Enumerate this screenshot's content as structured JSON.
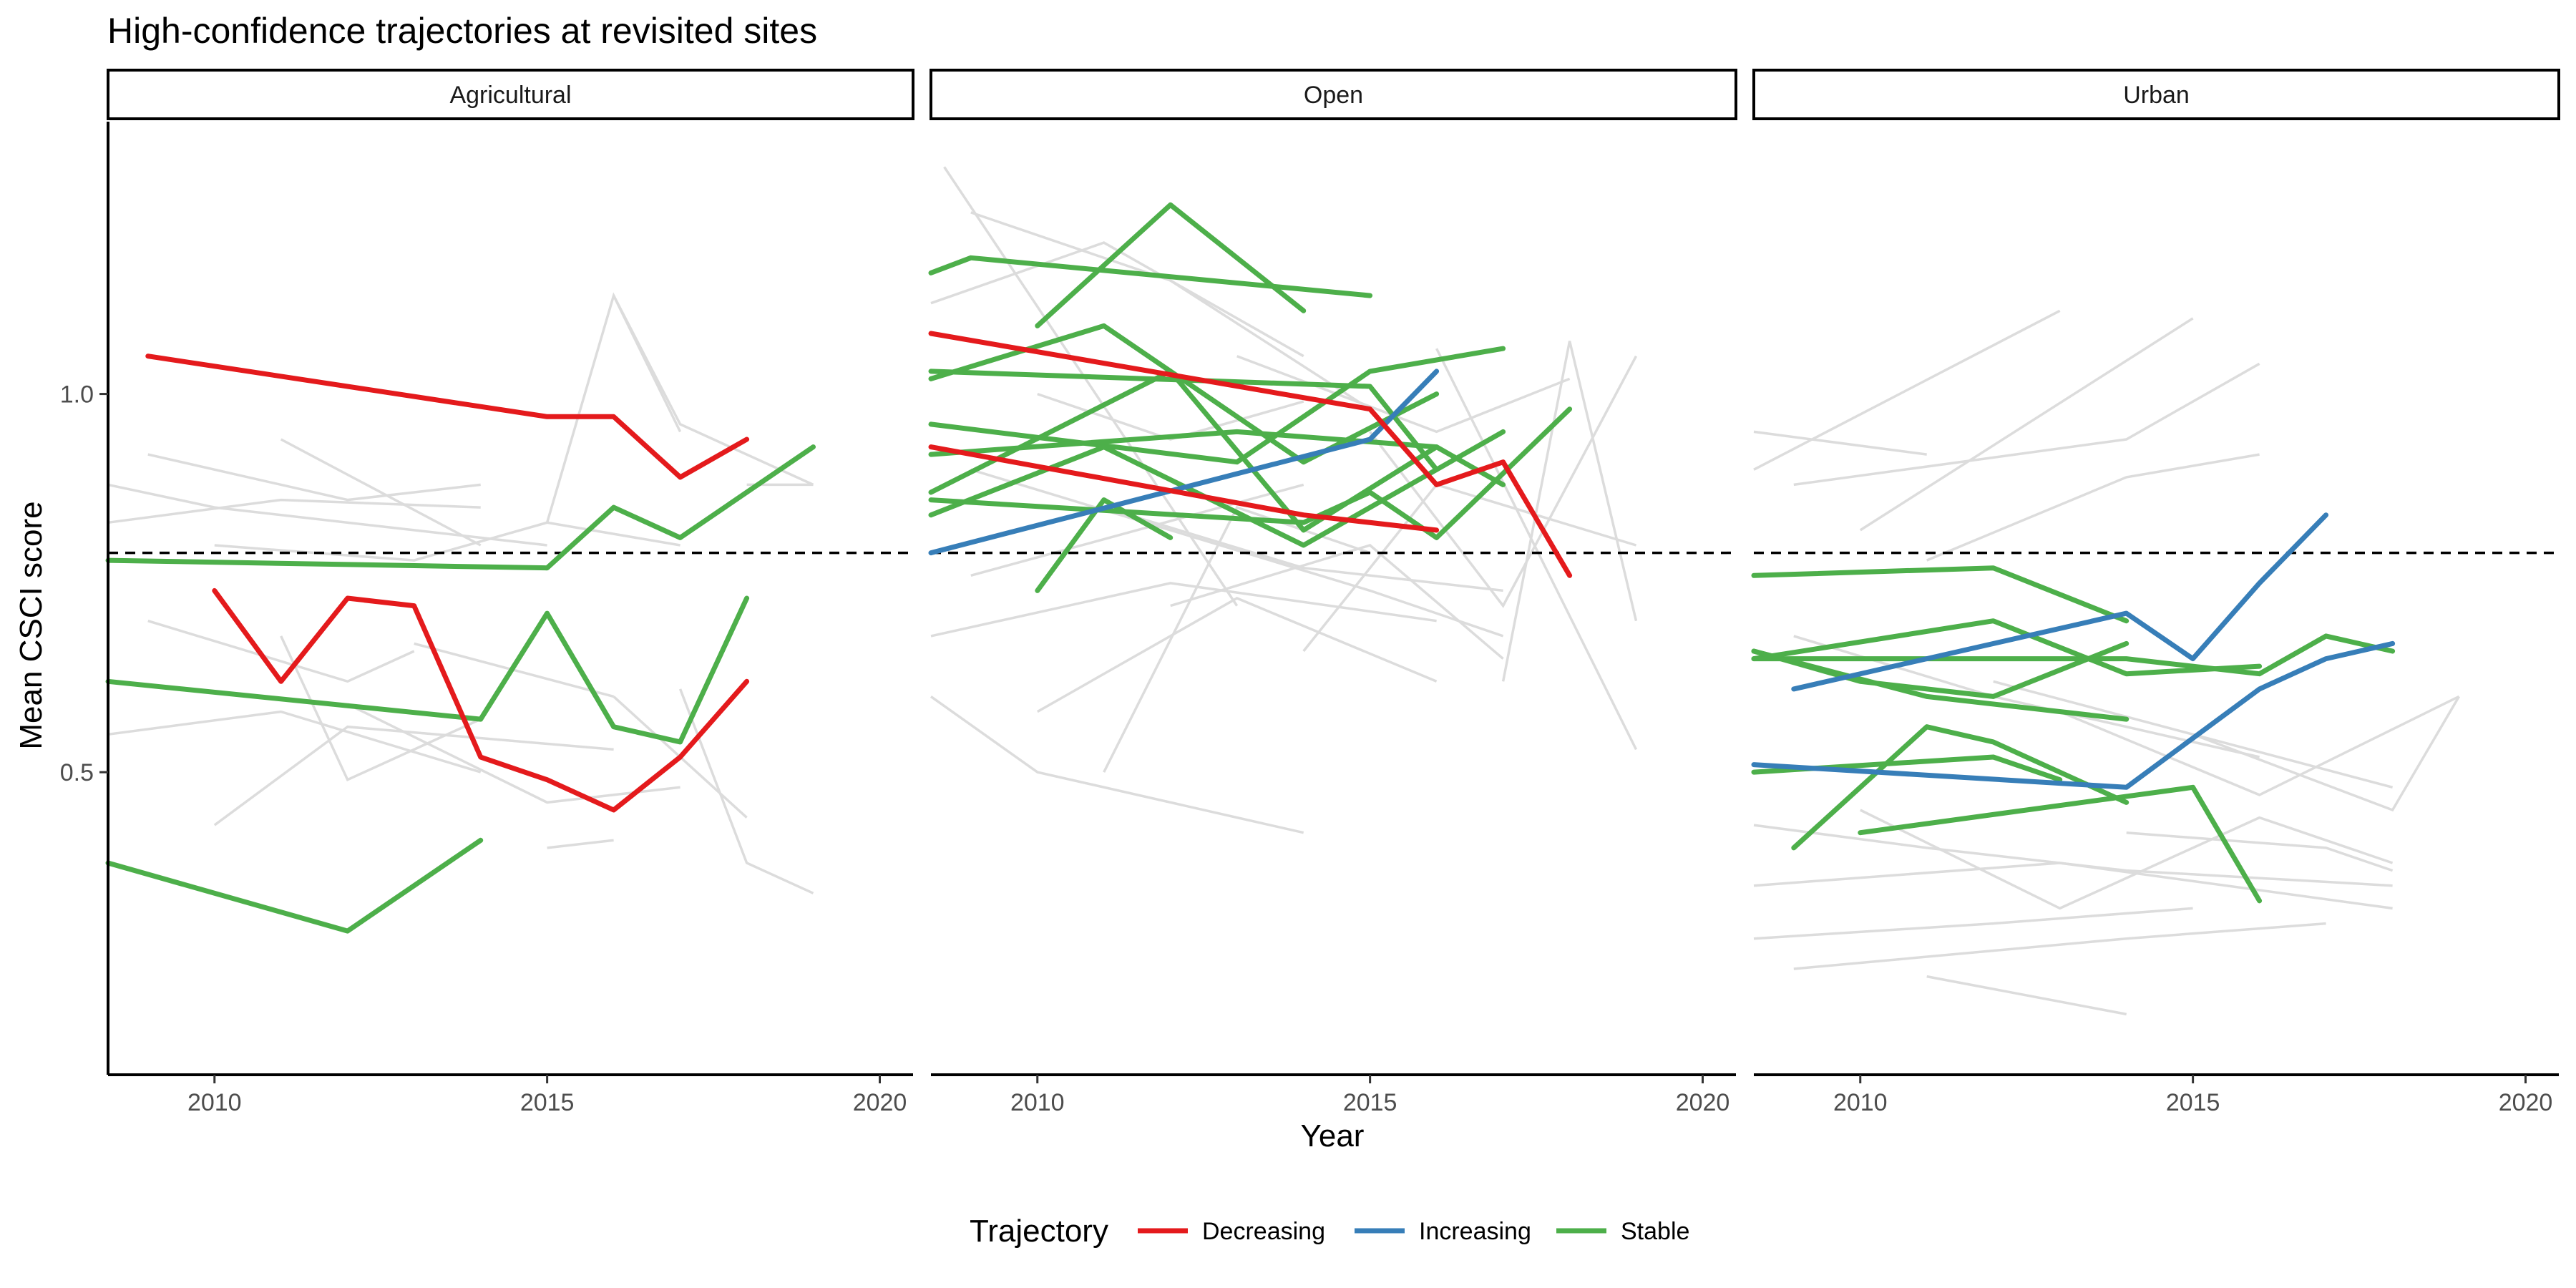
{
  "chart_data": {
    "type": "line",
    "title": "High-confidence trajectories at revisited sites",
    "xlabel": "Year",
    "ylabel": "Mean CSCI score",
    "xlim": [
      2008.4,
      2020.5
    ],
    "ylim": [
      0.1,
      1.36
    ],
    "x_ticks": [
      2010,
      2015,
      2020
    ],
    "y_ticks": [
      0.5,
      1.0
    ],
    "y_tick_labels": [
      "0.5",
      "1.0"
    ],
    "reference_line": {
      "y": 0.79,
      "style": "dashed"
    },
    "legend": {
      "title": "Trajectory",
      "position": "bottom",
      "entries": [
        {
          "name": "Decreasing",
          "color": "#e41a1c"
        },
        {
          "name": "Increasing",
          "color": "#377eb8"
        },
        {
          "name": "Stable",
          "color": "#4daf4a"
        }
      ]
    },
    "background_color": "#dcdcdc",
    "panels": [
      {
        "label": "Agricultural",
        "series": [
          {
            "trajectory": "Decreasing",
            "x": [
              2009,
              2015,
              2016,
              2017,
              2018
            ],
            "y": [
              1.05,
              0.97,
              0.97,
              0.89,
              0.94
            ]
          },
          {
            "trajectory": "Decreasing",
            "x": [
              2010,
              2011,
              2012,
              2013,
              2014,
              2015,
              2016,
              2017,
              2018
            ],
            "y": [
              0.74,
              0.62,
              0.73,
              0.72,
              0.52,
              0.49,
              0.45,
              0.52,
              0.62
            ]
          },
          {
            "trajectory": "Stable",
            "x": [
              2008.4,
              2015,
              2016,
              2017,
              2019
            ],
            "y": [
              0.78,
              0.77,
              0.85,
              0.81,
              0.93
            ]
          },
          {
            "trajectory": "Stable",
            "x": [
              2008.4,
              2014,
              2015,
              2016,
              2017,
              2018
            ],
            "y": [
              0.62,
              0.57,
              0.71,
              0.56,
              0.54,
              0.73
            ]
          },
          {
            "trajectory": "Stable",
            "x": [
              2008.4,
              2012,
              2014
            ],
            "y": [
              0.38,
              0.29,
              0.41
            ]
          }
        ],
        "background": [
          [
            [
              2008.4,
              2010,
              2013,
              2015
            ],
            [
              0.88,
              0.85,
              0.82,
              0.8
            ]
          ],
          [
            [
              2008.4,
              2011,
              2014
            ],
            [
              0.83,
              0.86,
              0.85
            ]
          ],
          [
            [
              2009,
              2012,
              2014
            ],
            [
              0.92,
              0.86,
              0.88
            ]
          ],
          [
            [
              2010,
              2013,
              2015,
              2017
            ],
            [
              0.8,
              0.78,
              0.83,
              0.8
            ]
          ],
          [
            [
              2011,
              2014
            ],
            [
              0.94,
              0.8
            ]
          ],
          [
            [
              2009,
              2012,
              2013
            ],
            [
              0.7,
              0.62,
              0.66
            ]
          ],
          [
            [
              2008.4,
              2011,
              2014
            ],
            [
              0.55,
              0.58,
              0.5
            ]
          ],
          [
            [
              2010,
              2012,
              2016
            ],
            [
              0.43,
              0.56,
              0.53
            ]
          ],
          [
            [
              2011,
              2012,
              2014
            ],
            [
              0.68,
              0.49,
              0.57
            ]
          ],
          [
            [
              2012,
              2015,
              2017
            ],
            [
              0.59,
              0.46,
              0.48
            ]
          ],
          [
            [
              2015,
              2016
            ],
            [
              0.4,
              0.41
            ]
          ],
          [
            [
              2016,
              2017
            ],
            [
              1.13,
              0.95
            ]
          ],
          [
            [
              2015,
              2016,
              2017,
              2019
            ],
            [
              0.83,
              1.13,
              0.96,
              0.88
            ]
          ],
          [
            [
              2016,
              2018
            ],
            [
              0.6,
              0.44
            ]
          ],
          [
            [
              2017,
              2018,
              2019
            ],
            [
              0.61,
              0.38,
              0.34
            ]
          ],
          [
            [
              2018,
              2019
            ],
            [
              0.88,
              0.88
            ]
          ],
          [
            [
              2013,
              2016
            ],
            [
              0.67,
              0.6
            ]
          ]
        ]
      },
      {
        "label": "Open",
        "series": [
          {
            "trajectory": "Decreasing",
            "x": [
              2008.4,
              2015,
              2016,
              2017,
              2018
            ],
            "y": [
              1.08,
              0.98,
              0.88,
              0.91,
              0.76
            ]
          },
          {
            "trajectory": "Decreasing",
            "x": [
              2008.4,
              2014,
              2016
            ],
            "y": [
              0.93,
              0.84,
              0.82
            ]
          },
          {
            "trajectory": "Increasing",
            "x": [
              2008.4,
              2015,
              2016
            ],
            "y": [
              0.79,
              0.94,
              1.03
            ]
          },
          {
            "trajectory": "Stable",
            "x": [
              2008.4,
              2009,
              2015
            ],
            "y": [
              1.16,
              1.18,
              1.13
            ]
          },
          {
            "trajectory": "Stable",
            "x": [
              2010,
              2012,
              2014
            ],
            "y": [
              1.09,
              1.25,
              1.11
            ]
          },
          {
            "trajectory": "Stable",
            "x": [
              2008.4,
              2011,
              2014,
              2016
            ],
            "y": [
              1.02,
              1.09,
              0.91,
              1.0
            ]
          },
          {
            "trajectory": "Stable",
            "x": [
              2008.4,
              2013,
              2015,
              2017
            ],
            "y": [
              0.96,
              0.91,
              1.03,
              1.06
            ]
          },
          {
            "trajectory": "Stable",
            "x": [
              2008.4,
              2012,
              2014,
              2016
            ],
            "y": [
              0.87,
              1.03,
              0.82,
              0.93
            ]
          },
          {
            "trajectory": "Stable",
            "x": [
              2008.4,
              2011,
              2014,
              2017
            ],
            "y": [
              0.84,
              0.93,
              0.8,
              0.95
            ]
          },
          {
            "trajectory": "Stable",
            "x": [
              2010,
              2011,
              2012
            ],
            "y": [
              0.74,
              0.86,
              0.81
            ]
          },
          {
            "trajectory": "Stable",
            "x": [
              2008.4,
              2015,
              2016
            ],
            "y": [
              1.03,
              1.01,
              0.9
            ]
          },
          {
            "trajectory": "Stable",
            "x": [
              2008.4,
              2013,
              2016,
              2017
            ],
            "y": [
              0.92,
              0.95,
              0.93,
              0.88
            ]
          },
          {
            "trajectory": "Stable",
            "x": [
              2008.4,
              2014,
              2015,
              2016,
              2018
            ],
            "y": [
              0.86,
              0.83,
              0.87,
              0.81,
              0.98
            ]
          }
        ],
        "background": [
          [
            [
              2008.6,
              2013
            ],
            [
              1.3,
              0.72
            ]
          ],
          [
            [
              2009,
              2012,
              2015
            ],
            [
              1.24,
              1.15,
              0.98
            ]
          ],
          [
            [
              2008.4,
              2011,
              2014
            ],
            [
              1.12,
              1.2,
              1.05
            ]
          ],
          [
            [
              2008.4,
              2012,
              2016
            ],
            [
              0.68,
              0.75,
              0.7
            ]
          ],
          [
            [
              2009,
              2014
            ],
            [
              0.76,
              0.88
            ]
          ],
          [
            [
              2008.4,
              2010,
              2014
            ],
            [
              0.6,
              0.5,
              0.42
            ]
          ],
          [
            [
              2010,
              2013,
              2016
            ],
            [
              0.58,
              0.73,
              0.62
            ]
          ],
          [
            [
              2011,
              2013,
              2015
            ],
            [
              0.5,
              0.85,
              0.79
            ]
          ],
          [
            [
              2012,
              2015,
              2017
            ],
            [
              0.72,
              0.8,
              0.65
            ]
          ],
          [
            [
              2013,
              2016,
              2018
            ],
            [
              1.05,
              0.95,
              1.02
            ]
          ],
          [
            [
              2014,
              2016,
              2019
            ],
            [
              0.66,
              0.88,
              0.8
            ]
          ],
          [
            [
              2015,
              2017,
              2019
            ],
            [
              0.95,
              0.72,
              1.05
            ]
          ],
          [
            [
              2016,
              2019
            ],
            [
              1.06,
              0.53
            ]
          ],
          [
            [
              2017,
              2018,
              2019
            ],
            [
              0.62,
              1.07,
              0.7
            ]
          ],
          [
            [
              2009,
              2012,
              2015,
              2017
            ],
            [
              0.9,
              0.82,
              0.74,
              0.68
            ]
          ],
          [
            [
              2010,
              2012,
              2014
            ],
            [
              1.0,
              0.94,
              0.99
            ]
          ],
          [
            [
              2011,
              2014,
              2017
            ],
            [
              0.85,
              0.77,
              0.74
            ]
          ]
        ]
      },
      {
        "label": "Urban",
        "series": [
          {
            "trajectory": "Increasing",
            "x": [
              2009,
              2014,
              2015,
              2016,
              2017
            ],
            "y": [
              0.61,
              0.71,
              0.65,
              0.75,
              0.84
            ]
          },
          {
            "trajectory": "Increasing",
            "x": [
              2008.4,
              2014,
              2016,
              2017,
              2018
            ],
            "y": [
              0.51,
              0.48,
              0.61,
              0.65,
              0.67
            ]
          },
          {
            "trajectory": "Stable",
            "x": [
              2008.4,
              2012,
              2014
            ],
            "y": [
              0.76,
              0.77,
              0.7
            ]
          },
          {
            "trajectory": "Stable",
            "x": [
              2008.4,
              2012,
              2014,
              2016
            ],
            "y": [
              0.65,
              0.7,
              0.63,
              0.64
            ]
          },
          {
            "trajectory": "Stable",
            "x": [
              2008.4,
              2010,
              2012,
              2014
            ],
            "y": [
              0.66,
              0.62,
              0.6,
              0.67
            ]
          },
          {
            "trajectory": "Stable",
            "x": [
              2008.4,
              2014,
              2016,
              2017,
              2018
            ],
            "y": [
              0.65,
              0.65,
              0.63,
              0.68,
              0.66
            ]
          },
          {
            "trajectory": "Stable",
            "x": [
              2008.4,
              2011,
              2014
            ],
            "y": [
              0.66,
              0.6,
              0.57
            ]
          },
          {
            "trajectory": "Stable",
            "x": [
              2008.4,
              2012,
              2013
            ],
            "y": [
              0.5,
              0.52,
              0.49
            ]
          },
          {
            "trajectory": "Stable",
            "x": [
              2009,
              2011,
              2012,
              2014
            ],
            "y": [
              0.4,
              0.56,
              0.54,
              0.46
            ]
          },
          {
            "trajectory": "Stable",
            "x": [
              2010,
              2015,
              2016
            ],
            "y": [
              0.42,
              0.48,
              0.33
            ]
          }
        ],
        "background": [
          [
            [
              2008.4,
              2011
            ],
            [
              0.95,
              0.92
            ]
          ],
          [
            [
              2008.4,
              2013
            ],
            [
              0.9,
              1.11
            ]
          ],
          [
            [
              2009,
              2014,
              2016
            ],
            [
              0.88,
              0.94,
              1.04
            ]
          ],
          [
            [
              2010,
              2015
            ],
            [
              0.82,
              1.1
            ]
          ],
          [
            [
              2011,
              2014,
              2016
            ],
            [
              0.78,
              0.89,
              0.92
            ]
          ],
          [
            [
              2008.4,
              2012,
              2015
            ],
            [
              0.28,
              0.3,
              0.32
            ]
          ],
          [
            [
              2009,
              2014,
              2017
            ],
            [
              0.24,
              0.28,
              0.3
            ]
          ],
          [
            [
              2011,
              2014
            ],
            [
              0.23,
              0.18
            ]
          ],
          [
            [
              2008.4,
              2013,
              2018
            ],
            [
              0.35,
              0.38,
              0.32
            ]
          ],
          [
            [
              2010,
              2013,
              2016,
              2018
            ],
            [
              0.45,
              0.32,
              0.44,
              0.38
            ]
          ],
          [
            [
              2012,
              2015,
              2018
            ],
            [
              0.62,
              0.55,
              0.48
            ]
          ],
          [
            [
              2013,
              2016,
              2019
            ],
            [
              0.58,
              0.47,
              0.6
            ]
          ],
          [
            [
              2008.4,
              2011,
              2014,
              2018
            ],
            [
              0.43,
              0.4,
              0.37,
              0.35
            ]
          ],
          [
            [
              2015,
              2018,
              2019
            ],
            [
              0.55,
              0.45,
              0.6
            ]
          ],
          [
            [
              2009,
              2012,
              2016
            ],
            [
              0.68,
              0.6,
              0.52
            ]
          ],
          [
            [
              2014,
              2017,
              2018
            ],
            [
              0.42,
              0.4,
              0.37
            ]
          ]
        ]
      }
    ]
  }
}
